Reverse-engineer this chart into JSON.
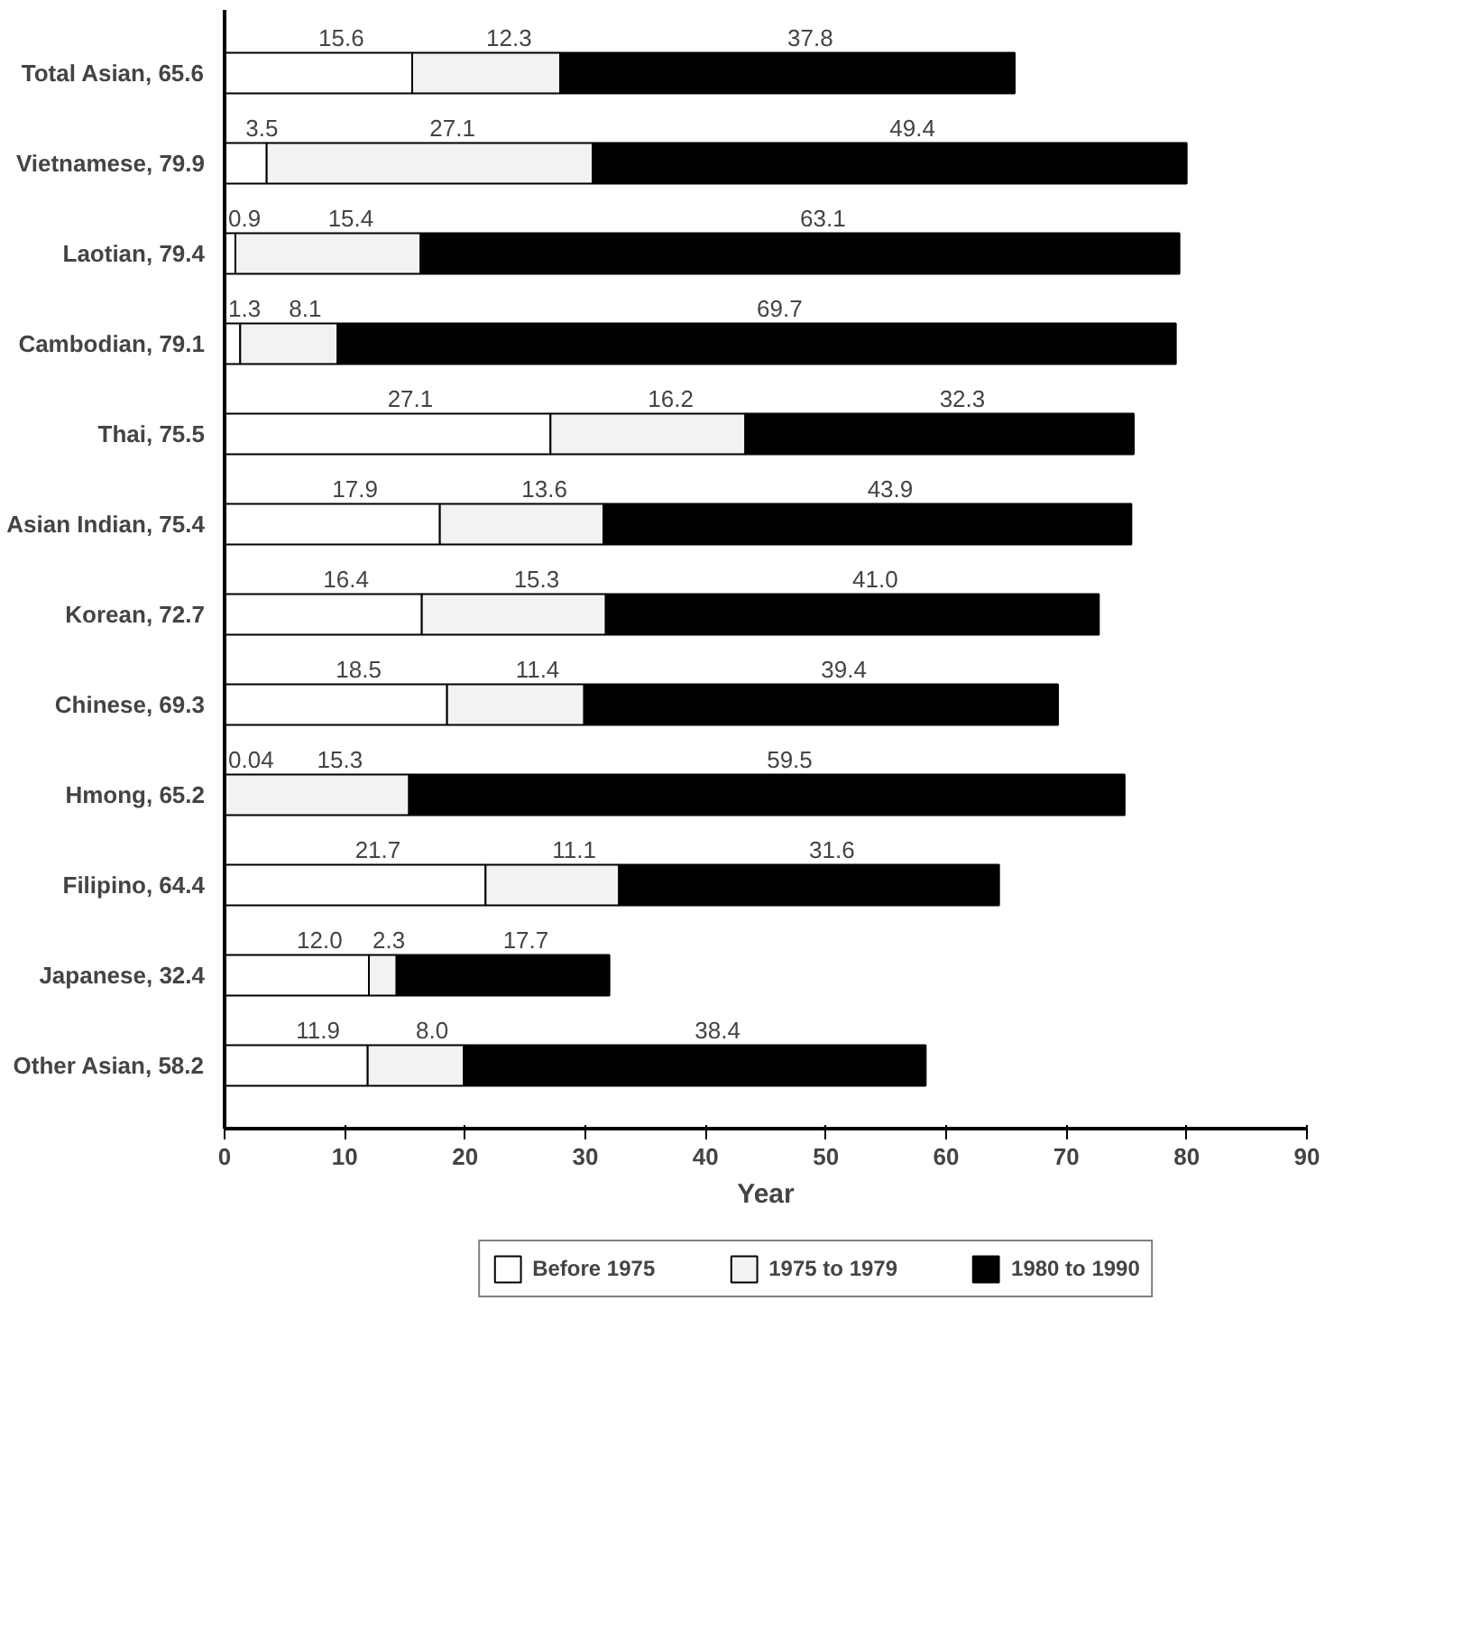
{
  "chart_data": {
    "type": "bar",
    "orientation": "horizontal",
    "stacked": true,
    "xlabel": "Year",
    "categories": [
      "Total Asian, 65.6",
      "Vietnamese, 79.9",
      "Laotian, 79.4",
      "Cambodian, 79.1",
      "Thai, 75.5",
      "Asian Indian, 75.4",
      "Korean, 72.7",
      "Chinese, 69.3",
      "Hmong, 65.2",
      "Filipino, 64.4",
      "Japanese, 32.4",
      "Other Asian, 58.2"
    ],
    "series": [
      {
        "name": "Before 1975",
        "color": "#ffffff",
        "values": [
          15.6,
          3.5,
          0.9,
          1.3,
          27.1,
          17.9,
          16.4,
          18.5,
          0.04,
          21.7,
          12.0,
          11.9
        ],
        "value_labels": [
          "15.6",
          "3.5",
          "0.9",
          "1.3",
          "27.1",
          "17.9",
          "16.4",
          "18.5",
          "0.04",
          "21.7",
          "12.0",
          "11.9"
        ]
      },
      {
        "name": "1975 to 1979",
        "color": "#f2f2f2",
        "values": [
          12.3,
          27.1,
          15.4,
          8.1,
          16.2,
          13.6,
          15.3,
          11.4,
          15.3,
          11.1,
          2.3,
          8.0
        ],
        "value_labels": [
          "12.3",
          "27.1",
          "15.4",
          "8.1",
          "16.2",
          "13.6",
          "15.3",
          "11.4",
          "15.3",
          "11.1",
          "2.3",
          "8.0"
        ]
      },
      {
        "name": "1980 to 1990",
        "color": "#000000",
        "values": [
          37.8,
          49.4,
          63.1,
          69.7,
          32.3,
          43.9,
          41.0,
          39.4,
          59.5,
          31.6,
          17.7,
          38.4
        ],
        "value_labels": [
          "37.8",
          "49.4",
          "63.1",
          "69.7",
          "32.3",
          "43.9",
          "41.0",
          "39.4",
          "59.5",
          "31.6",
          "17.7",
          "38.4"
        ]
      }
    ],
    "xlim": [
      0,
      90
    ],
    "xticks": [
      0,
      10,
      20,
      30,
      40,
      50,
      60,
      70,
      80,
      90
    ],
    "grid": false,
    "legend": "bottom"
  }
}
